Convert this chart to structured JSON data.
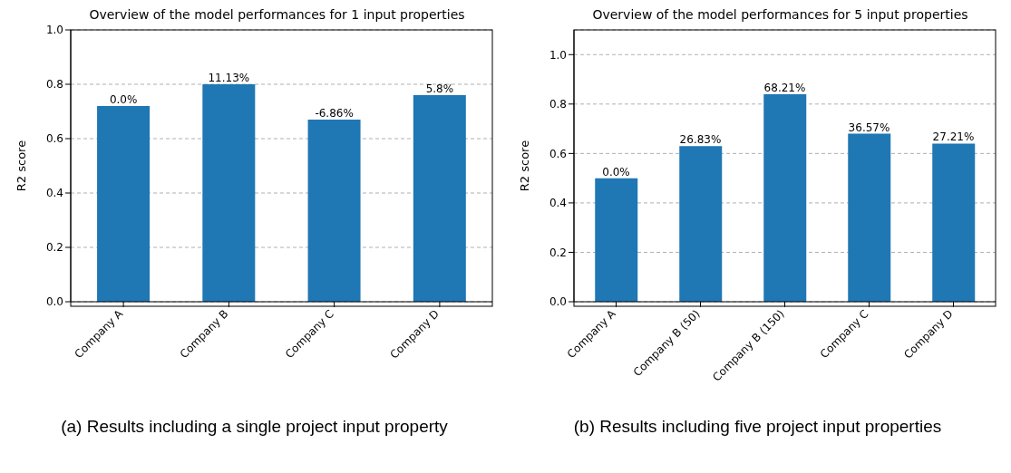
{
  "chart_data": [
    {
      "type": "bar",
      "title": "Overview of the model performances for 1 input properties",
      "ylabel": "R2 score",
      "categories": [
        "Company A",
        "Company B",
        "Company C",
        "Company D"
      ],
      "values": [
        0.72,
        0.8,
        0.67,
        0.76
      ],
      "color": "#1f77b4",
      "ylim": [
        0,
        1
      ],
      "yticks": [
        {
          "value": 0,
          "label": "0.0"
        },
        {
          "value": 0.2,
          "label": "0.2"
        },
        {
          "value": 0.4,
          "label": "0.4"
        },
        {
          "value": 0.6,
          "label": "0.6"
        },
        {
          "value": 0.8,
          "label": "0.8"
        },
        {
          "value": 1,
          "label": "1.0"
        }
      ],
      "grid": "y",
      "annotations": [
        {
          "text": "0.0%",
          "x": "Company A",
          "y": 0.72
        },
        {
          "text": "11.13%",
          "x": "Company B",
          "y": 0.8
        },
        {
          "text": "-6.86%",
          "x": "Company C",
          "y": 0.67
        },
        {
          "text": "5.8%",
          "x": "Company D",
          "y": 0.76
        },
        "(a) Results including a single project input property"
      ]
    },
    {
      "type": "bar",
      "title": "Overview of the model performances for 5 input properties",
      "ylabel": "R2 score",
      "categories": [
        "Company A",
        "Company B (50)",
        "Company B (150)",
        "Company C",
        "Company D"
      ],
      "values": [
        0.5,
        0.63,
        0.84,
        0.68,
        0.64
      ],
      "color": "#1f77b4",
      "ylim": [
        0,
        1.1
      ],
      "yticks": [
        {
          "value": 0,
          "label": "0.0"
        },
        {
          "value": 0.2,
          "label": "0.2"
        },
        {
          "value": 0.4,
          "label": "0.4"
        },
        {
          "value": 0.6,
          "label": "0.6"
        },
        {
          "value": 0.8,
          "label": "0.8"
        },
        {
          "value": 1,
          "label": "1.0"
        }
      ],
      "grid": "y",
      "annotations": [
        {
          "text": "0.0%",
          "x": "Company A",
          "y": 0.5
        },
        {
          "text": "26.83%",
          "x": "Company B (50)",
          "y": 0.63
        },
        {
          "text": "68.21%",
          "x": "Company B (150)",
          "y": 0.84
        },
        {
          "text": "36.57%",
          "x": "Company C",
          "y": 0.68
        },
        {
          "text": "27.21%",
          "x": "Company D",
          "y": 0.64
        },
        "(b) Results including five project input properties"
      ]
    }
  ]
}
